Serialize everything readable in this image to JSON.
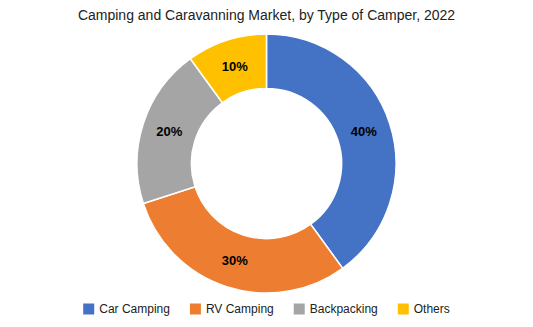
{
  "chart_data": {
    "type": "donut",
    "title": "Camping and Caravanning Market, by Type of Camper, 2022",
    "categories": [
      "Car Camping",
      "RV Camping",
      "Backpacking",
      "Others"
    ],
    "values": [
      40,
      30,
      20,
      10
    ],
    "value_labels": [
      "40%",
      "30%",
      "20%",
      "10%"
    ],
    "colors": [
      "#4472C4",
      "#ED7D31",
      "#A5A5A5",
      "#FFC000"
    ],
    "data_labels": true,
    "legend": "bottom"
  }
}
